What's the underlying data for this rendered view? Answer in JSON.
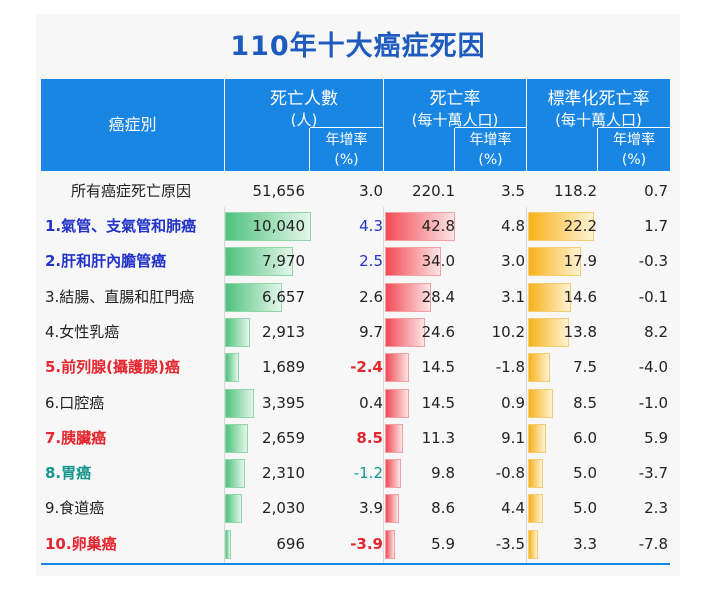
{
  "title": "110年十大癌症死因",
  "header": {
    "category": "癌症別",
    "deaths": "死亡人數",
    "deaths_unit": "(人)",
    "rate": "死亡率",
    "rate_unit": "(每十萬人口)",
    "std_rate": "標準化死亡率",
    "std_rate_unit": "(每十萬人口)",
    "growth": "年增率",
    "growth_unit": "(%)"
  },
  "colors": {
    "header_bg": "#1a86e3",
    "title": "#1f5bbf",
    "bar_deaths": "#4fc27d",
    "bar_rate": "#f24b55",
    "bar_std_rate": "#f7b21a",
    "label_blue": "#2233c8",
    "label_red": "#e5262e",
    "label_teal": "#17958f",
    "label_black": "#222222"
  },
  "chart_data": {
    "type": "table",
    "columns": [
      "癌症別",
      "死亡人數",
      "年增率",
      "死亡率",
      "年增率",
      "標準化死亡率",
      "年增率"
    ],
    "summary": {
      "label": "所有癌症死亡原因",
      "deaths": "51,656",
      "deaths_growth": "3.0",
      "rate": "220.1",
      "rate_growth": "3.5",
      "std_rate": "118.2",
      "std_rate_growth": "0.7"
    },
    "rows": [
      {
        "label": "1.氣管、支氣管和肺癌",
        "color": "blue",
        "deaths": "10,040",
        "deaths_value": 10040,
        "deaths_growth": "4.3",
        "deaths_growth_color": "blue",
        "rate": "42.8",
        "rate_value": 42.8,
        "rate_growth": "4.8",
        "std_rate": "22.2",
        "std_rate_value": 22.2,
        "std_rate_growth": "1.7"
      },
      {
        "label": "2.肝和肝內膽管癌",
        "color": "blue",
        "deaths": "7,970",
        "deaths_value": 7970,
        "deaths_growth": "2.5",
        "deaths_growth_color": "blue",
        "rate": "34.0",
        "rate_value": 34.0,
        "rate_growth": "3.0",
        "std_rate": "17.9",
        "std_rate_value": 17.9,
        "std_rate_growth": "-0.3"
      },
      {
        "label": "3.結腸、直腸和肛門癌",
        "color": "black",
        "deaths": "6,657",
        "deaths_value": 6657,
        "deaths_growth": "2.6",
        "deaths_growth_color": "black",
        "rate": "28.4",
        "rate_value": 28.4,
        "rate_growth": "3.1",
        "std_rate": "14.6",
        "std_rate_value": 14.6,
        "std_rate_growth": "-0.1"
      },
      {
        "label": "4.女性乳癌",
        "color": "black",
        "deaths": "2,913",
        "deaths_value": 2913,
        "deaths_growth": "9.7",
        "deaths_growth_color": "black",
        "rate": "24.6",
        "rate_value": 24.6,
        "rate_growth": "10.2",
        "std_rate": "13.8",
        "std_rate_value": 13.8,
        "std_rate_growth": "8.2"
      },
      {
        "label": "5.前列腺(攝護腺)癌",
        "color": "red",
        "deaths": "1,689",
        "deaths_value": 1689,
        "deaths_growth": "-2.4",
        "deaths_growth_color": "red",
        "rate": "14.5",
        "rate_value": 14.5,
        "rate_growth": "-1.8",
        "std_rate": "7.5",
        "std_rate_value": 7.5,
        "std_rate_growth": "-4.0"
      },
      {
        "label": "6.口腔癌",
        "color": "black",
        "deaths": "3,395",
        "deaths_value": 3395,
        "deaths_growth": "0.4",
        "deaths_growth_color": "black",
        "rate": "14.5",
        "rate_value": 14.5,
        "rate_growth": "0.9",
        "std_rate": "8.5",
        "std_rate_value": 8.5,
        "std_rate_growth": "-1.0"
      },
      {
        "label": "7.胰臟癌",
        "color": "red",
        "deaths": "2,659",
        "deaths_value": 2659,
        "deaths_growth": "8.5",
        "deaths_growth_color": "red",
        "rate": "11.3",
        "rate_value": 11.3,
        "rate_growth": "9.1",
        "std_rate": "6.0",
        "std_rate_value": 6.0,
        "std_rate_growth": "5.9"
      },
      {
        "label": "8.胃癌",
        "color": "teal",
        "deaths": "2,310",
        "deaths_value": 2310,
        "deaths_growth": "-1.2",
        "deaths_growth_color": "teal",
        "rate": "9.8",
        "rate_value": 9.8,
        "rate_growth": "-0.8",
        "std_rate": "5.0",
        "std_rate_value": 5.0,
        "std_rate_growth": "-3.7"
      },
      {
        "label": "9.食道癌",
        "color": "black",
        "deaths": "2,030",
        "deaths_value": 2030,
        "deaths_growth": "3.9",
        "deaths_growth_color": "black",
        "rate": "8.6",
        "rate_value": 8.6,
        "rate_growth": "4.4",
        "std_rate": "5.0",
        "std_rate_value": 5.0,
        "std_rate_growth": "2.3"
      },
      {
        "label": "10.卵巢癌",
        "color": "red",
        "deaths": "696",
        "deaths_value": 696,
        "deaths_growth": "-3.9",
        "deaths_growth_color": "red",
        "rate": "5.9",
        "rate_value": 5.9,
        "rate_growth": "-3.5",
        "std_rate": "3.3",
        "std_rate_value": 3.3,
        "std_rate_growth": "-7.8"
      }
    ]
  }
}
